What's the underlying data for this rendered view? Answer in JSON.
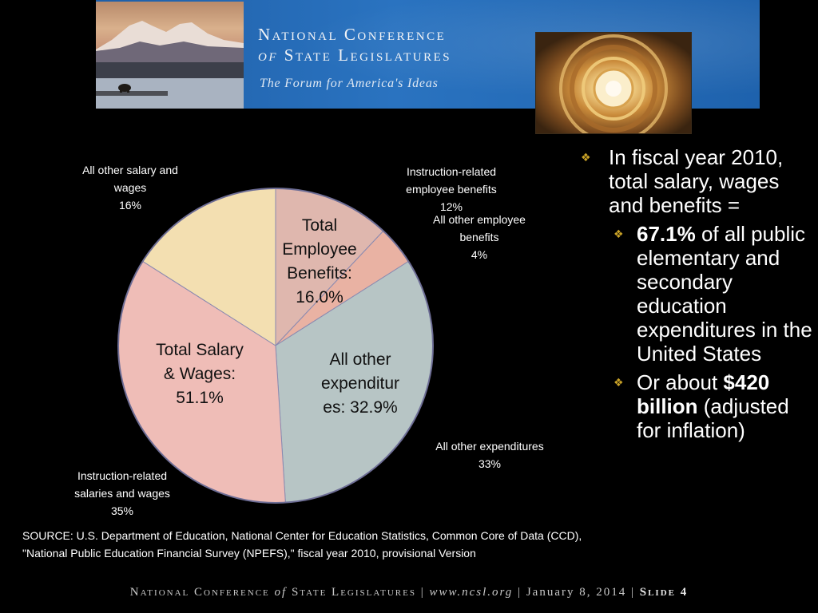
{
  "header": {
    "org_line1": "National Conference",
    "org_line2_of": "of",
    "org_line2_rest": "State Legislatures",
    "tagline": "The Forum for America's Ideas"
  },
  "colors": {
    "salary_other": "#f3dfb1",
    "salary_instruction": "#efbdb7",
    "benefits_instruction": "#dfb7ae",
    "benefits_other": "#e9b2a3",
    "other_expenditures": "#b7c5c5",
    "bullet_diamond": "#c9a227"
  },
  "chart_data": {
    "type": "pie",
    "slices": [
      {
        "label": "Instruction-related employee benefits",
        "value": 12,
        "color": "#dfb7ae"
      },
      {
        "label": "All other employee benefits",
        "value": 4,
        "color": "#e9b2a3"
      },
      {
        "label": "All other expenditures",
        "value": 33,
        "color": "#b7c5c5"
      },
      {
        "label": "Instruction-related salaries and wages",
        "value": 35,
        "color": "#efbdb7"
      },
      {
        "label": "All other salary and wages",
        "value": 16,
        "color": "#f3dfb1"
      }
    ],
    "outer_labels": [
      {
        "lines": [
          "All other salary and",
          "wages",
          "16%"
        ]
      },
      {
        "lines": [
          "Instruction-related",
          "employee benefits",
          "12%"
        ]
      },
      {
        "lines": [
          "All other employee",
          "benefits",
          "4%"
        ]
      },
      {
        "lines": [
          "All other expenditures",
          "33%"
        ]
      },
      {
        "lines": [
          "Instruction-related",
          "salaries and wages",
          "35%"
        ]
      }
    ],
    "group_labels": {
      "benefits": [
        "Total",
        "Employee",
        "Benefits:",
        "16.0%"
      ],
      "salary": [
        "Total Salary",
        "& Wages:",
        "51.1%"
      ],
      "other": [
        "All other",
        "expenditur",
        "es: 32.9%"
      ]
    }
  },
  "bullets": {
    "main_text": "In fiscal year 2010, total salary, wages and benefits =",
    "sub1_bold": "67.1%",
    "sub1_rest": " of all public elementary and secondary education expenditures in the United States",
    "sub2_pre": "Or about ",
    "sub2_bold": "$420 billion",
    "sub2_rest": " (adjusted for inflation)"
  },
  "source": {
    "line1": "SOURCE: U.S. Department of Education, National Center for Education Statistics, Common Core of Data (CCD),",
    "line2": "\"National Public Education Financial Survey (NPEFS),\" fiscal year 2010, provisional Version"
  },
  "footer": {
    "org_a": "National Conference",
    "of": "of",
    "org_b": "State Legislatures",
    "sep1": "|",
    "url": "www.ncsl.org",
    "sep2": "|",
    "date": "January 8, 2014",
    "sep3": "|",
    "slide_label": "Slide",
    "slide_num": "4"
  }
}
